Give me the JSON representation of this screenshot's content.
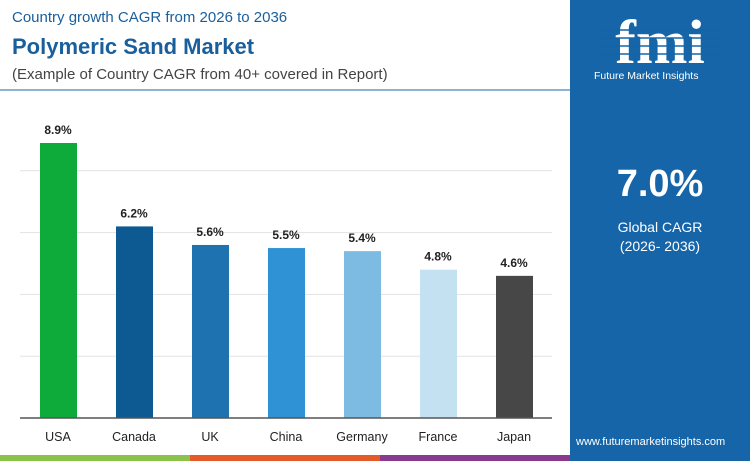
{
  "header": {
    "subtitle": "Country growth CAGR from 2026 to 2036",
    "title": "Polymeric Sand Market",
    "note": "(Example of Country CAGR from 40+ covered in Report)"
  },
  "sidebar": {
    "brand": "Future Market Insights",
    "logo_text": "fmi",
    "global_value": "7.0%",
    "global_label": "Global CAGR",
    "global_period": "(2026- 2036)",
    "url": "www.futuremarketinsights.com",
    "color": "#1565a8"
  },
  "strip_colors": [
    "#8bc34a",
    "#e55a2b",
    "#8a3a8c"
  ],
  "chart_data": {
    "type": "bar",
    "categories": [
      "USA",
      "Canada",
      "UK",
      "China",
      "Germany",
      "France",
      "Japan"
    ],
    "values": [
      8.9,
      6.2,
      5.6,
      5.5,
      5.4,
      4.8,
      4.6
    ],
    "labels": [
      "8.9%",
      "6.2%",
      "5.6%",
      "5.5%",
      "5.4%",
      "4.8%",
      "4.6%"
    ],
    "colors": [
      "#0eaa3a",
      "#0d5a92",
      "#1f72b0",
      "#2e92d4",
      "#7ebbe3",
      "#c4e1f2",
      "#474747"
    ],
    "ylim": [
      0,
      10
    ],
    "grid": true
  }
}
